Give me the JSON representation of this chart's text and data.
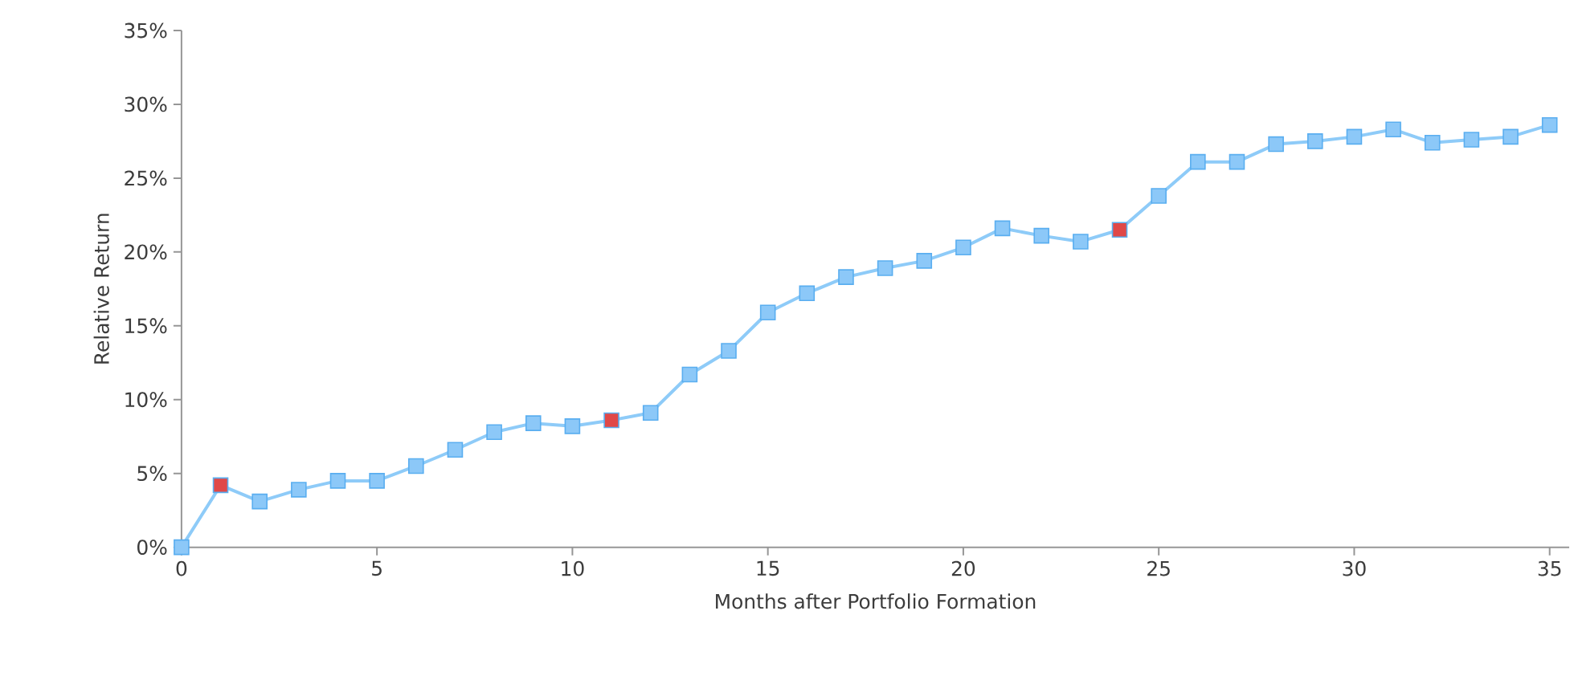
{
  "chart_data": {
    "type": "line",
    "xlabel": "Months after Portfolio Formation",
    "ylabel": "Relative Return",
    "x": [
      0,
      1,
      2,
      3,
      4,
      5,
      6,
      7,
      8,
      9,
      10,
      11,
      12,
      13,
      14,
      15,
      16,
      17,
      18,
      19,
      20,
      21,
      22,
      23,
      24,
      25,
      26,
      27,
      28,
      29,
      30,
      31,
      32,
      33,
      34,
      35
    ],
    "series": [
      {
        "color": "#8ecbf8",
        "values": [
          0,
          4.2,
          3.1,
          3.9,
          4.5,
          4.5,
          5.5,
          6.6,
          7.8,
          8.4,
          8.2,
          8.6,
          9.1,
          11.7,
          13.3,
          15.9,
          17.2,
          18.3,
          18.9,
          19.4,
          20.3,
          21.6,
          21.1,
          20.7,
          21.5,
          23.8,
          26.1,
          26.1,
          27.3,
          27.5,
          27.8,
          28.3,
          27.4,
          27.6,
          27.8,
          28.6
        ],
        "colors": [
          "#8cc8f8",
          "#e04848",
          "#8cc8f8",
          "#8cc8f8",
          "#8cc8f8",
          "#8cc8f8",
          "#8cc8f8",
          "#8cc8f8",
          "#8cc8f8",
          "#8cc8f8",
          "#8cc8f8",
          "#e04848",
          "#8cc8f8",
          "#8cc8f8",
          "#8cc8f8",
          "#8cc8f8",
          "#8cc8f8",
          "#8cc8f8",
          "#8cc8f8",
          "#8cc8f8",
          "#8cc8f8",
          "#8cc8f8",
          "#8cc8f8",
          "#8cc8f8",
          "#e04848",
          "#8cc8f8",
          "#8cc8f8",
          "#8cc8f8",
          "#8cc8f8",
          "#8cc8f8",
          "#8cc8f8",
          "#8cc8f8",
          "#8cc8f8",
          "#8cc8f8",
          "#8cc8f8",
          "#8cc8f8"
        ]
      }
    ],
    "marker": "square",
    "line_style": "solid",
    "xlim": [
      0,
      35.5
    ],
    "xticks": [
      0,
      5,
      10,
      15,
      20,
      25,
      30,
      35
    ],
    "ylim": [
      0,
      35
    ],
    "yticks": [
      {
        "value": 0,
        "label": "0%"
      },
      {
        "value": 5,
        "label": "5%"
      },
      {
        "value": 10,
        "label": "10%"
      },
      {
        "value": 15,
        "label": "15%"
      },
      {
        "value": 20,
        "label": "20%"
      },
      {
        "value": 25,
        "label": "25%"
      },
      {
        "value": 30,
        "label": "30%"
      },
      {
        "value": 35,
        "label": "35%"
      }
    ]
  }
}
